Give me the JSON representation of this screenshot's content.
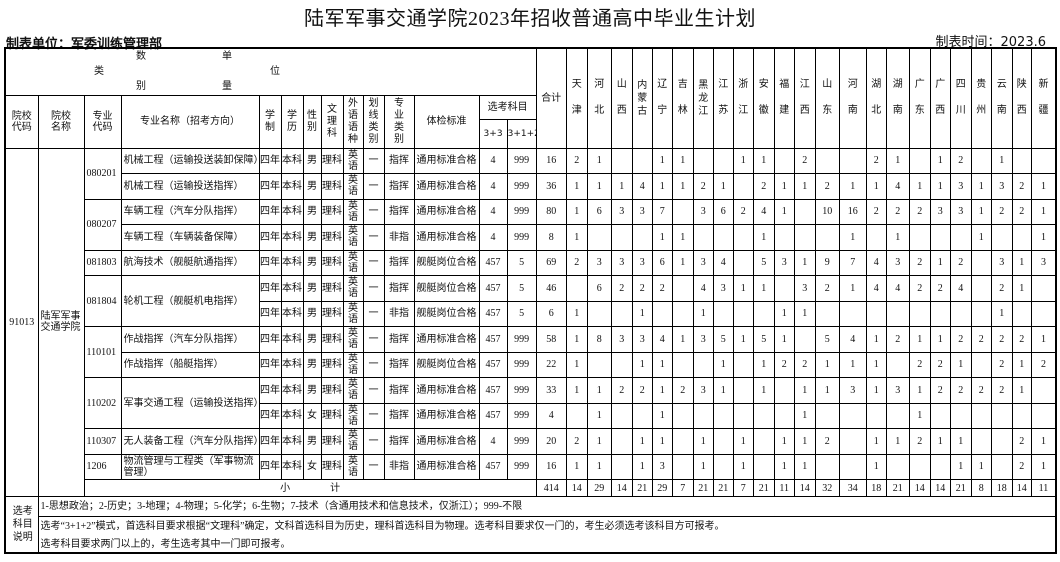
{
  "title": "陆军军事交通学院2023年招收普通高中毕业生计划",
  "unit_label": "制表单位：军委训练管理部",
  "time_label": "制表时间：2023.6",
  "header": {
    "category_chars": [
      "数",
      "单",
      "类",
      "位",
      "别",
      "量"
    ],
    "columns": [
      "院校代码",
      "院校名称",
      "专业代码",
      "专业名称（招考方向）",
      "学制",
      "学历",
      "性别",
      "文理科",
      "外语语种",
      "划线类别",
      "专业类别",
      "体检标准"
    ],
    "subject_group": "选考科目",
    "subject_cols": [
      "3+3",
      "3+1+2"
    ],
    "total": "合计",
    "provinces": [
      "天津",
      "河北",
      "山西",
      "内蒙古",
      "辽宁",
      "吉林",
      "黑龙江",
      "江苏",
      "浙江",
      "安徽",
      "福建",
      "江西",
      "山东",
      "河南",
      "湖北",
      "湖南",
      "广东",
      "广西",
      "四川",
      "贵州",
      "云南",
      "陕西",
      "新疆"
    ]
  },
  "school": {
    "code": "91013",
    "name": "陆军军事交通学院"
  },
  "majors": [
    {
      "code": "080201",
      "directions": [
        {
          "name": "机械工程（运输投送装卸保障）",
          "rows": [
            [
              "四年",
              "本科",
              "男",
              "理科",
              "英语",
              "一",
              "指挥",
              "通用标准合格",
              "4",
              "999",
              "16",
              [
                "2",
                "1",
                "",
                "",
                "1",
                "1",
                "",
                "",
                "1",
                "1",
                "",
                "2",
                "",
                "",
                "2",
                "1",
                "",
                "1",
                "2",
                "",
                "1",
                "",
                ""
              ]
            ]
          ]
        },
        {
          "name": "机械工程（运输投送指挥）",
          "rows": [
            [
              "四年",
              "本科",
              "男",
              "理科",
              "英语",
              "一",
              "指挥",
              "通用标准合格",
              "4",
              "999",
              "36",
              [
                "1",
                "1",
                "1",
                "4",
                "1",
                "1",
                "2",
                "1",
                "",
                "2",
                "1",
                "1",
                "2",
                "1",
                "1",
                "4",
                "1",
                "1",
                "3",
                "1",
                "3",
                "2",
                "1"
              ]
            ]
          ]
        }
      ]
    },
    {
      "code": "080207",
      "directions": [
        {
          "name": "车辆工程（汽车分队指挥）",
          "rows": [
            [
              "四年",
              "本科",
              "男",
              "理科",
              "英语",
              "一",
              "指挥",
              "通用标准合格",
              "4",
              "999",
              "80",
              [
                "1",
                "6",
                "3",
                "3",
                "7",
                "",
                "3",
                "6",
                "2",
                "4",
                "1",
                "",
                "10",
                "16",
                "2",
                "2",
                "2",
                "3",
                "3",
                "1",
                "2",
                "2",
                "1"
              ]
            ]
          ]
        },
        {
          "name": "车辆工程（车辆装备保障）",
          "rows": [
            [
              "四年",
              "本科",
              "男",
              "理科",
              "英语",
              "一",
              "非指",
              "通用标准合格",
              "4",
              "999",
              "8",
              [
                "1",
                "",
                "",
                "",
                "1",
                "1",
                "",
                "",
                "",
                "1",
                "",
                "",
                "",
                "1",
                "",
                "1",
                "",
                "",
                "",
                "1",
                "",
                "",
                "1"
              ]
            ]
          ]
        }
      ]
    },
    {
      "code": "081803",
      "directions": [
        {
          "name": "航海技术（舰艇航通指挥）",
          "rows": [
            [
              "四年",
              "本科",
              "男",
              "理科",
              "英语",
              "一",
              "指挥",
              "舰艇岗位合格",
              "457",
              "5",
              "69",
              [
                "2",
                "3",
                "3",
                "3",
                "6",
                "1",
                "3",
                "4",
                "",
                "5",
                "3",
                "1",
                "9",
                "7",
                "4",
                "3",
                "2",
                "1",
                "2",
                "",
                "3",
                "1",
                "3"
              ]
            ]
          ]
        }
      ]
    },
    {
      "code": "081804",
      "directions": [
        {
          "name": "轮机工程（舰艇机电指挥）",
          "rows": [
            [
              "四年",
              "本科",
              "男",
              "理科",
              "英语",
              "一",
              "指挥",
              "舰艇岗位合格",
              "457",
              "5",
              "46",
              [
                "",
                "6",
                "2",
                "2",
                "2",
                "",
                "4",
                "3",
                "1",
                "1",
                "",
                "3",
                "2",
                "1",
                "4",
                "4",
                "2",
                "2",
                "4",
                "",
                "2",
                "1",
                ""
              ]
            ],
            [
              "四年",
              "本科",
              "男",
              "理科",
              "英语",
              "一",
              "非指",
              "舰艇岗位合格",
              "457",
              "5",
              "6",
              [
                "1",
                "",
                "",
                "1",
                "",
                "",
                "1",
                "",
                "",
                "",
                "1",
                "1",
                "",
                "",
                "",
                "",
                "",
                "",
                "",
                "",
                "1",
                "",
                ""
              ]
            ]
          ]
        }
      ]
    },
    {
      "code": "110101",
      "directions": [
        {
          "name": "作战指挥（汽车分队指挥）",
          "rows": [
            [
              "四年",
              "本科",
              "男",
              "理科",
              "英语",
              "一",
              "指挥",
              "通用标准合格",
              "457",
              "999",
              "58",
              [
                "1",
                "8",
                "3",
                "3",
                "4",
                "1",
                "3",
                "5",
                "1",
                "5",
                "1",
                "",
                "5",
                "4",
                "1",
                "2",
                "1",
                "1",
                "2",
                "2",
                "2",
                "2",
                "1"
              ]
            ]
          ]
        },
        {
          "name": "作战指挥（船艇指挥）",
          "rows": [
            [
              "四年",
              "本科",
              "男",
              "理科",
              "英语",
              "一",
              "指挥",
              "舰艇岗位合格",
              "457",
              "999",
              "22",
              [
                "1",
                "",
                "",
                "1",
                "1",
                "",
                "",
                "1",
                "",
                "1",
                "2",
                "2",
                "1",
                "1",
                "1",
                "",
                "2",
                "2",
                "1",
                "",
                "2",
                "1",
                "2"
              ]
            ]
          ]
        }
      ]
    },
    {
      "code": "110202",
      "directions": [
        {
          "name": "军事交通工程（运输投送指挥）",
          "rows": [
            [
              "四年",
              "本科",
              "男",
              "理科",
              "英语",
              "一",
              "指挥",
              "通用标准合格",
              "457",
              "999",
              "33",
              [
                "1",
                "1",
                "2",
                "2",
                "1",
                "2",
                "3",
                "1",
                "",
                "1",
                "",
                "1",
                "1",
                "3",
                "1",
                "3",
                "1",
                "2",
                "2",
                "2",
                "2",
                "1",
                ""
              ]
            ],
            [
              "四年",
              "本科",
              "女",
              "理科",
              "英语",
              "一",
              "指挥",
              "通用标准合格",
              "457",
              "999",
              "4",
              [
                "",
                "1",
                "",
                "",
                "1",
                "",
                "",
                "",
                "",
                "",
                "",
                "1",
                "",
                "",
                "",
                "",
                "1",
                "",
                "",
                "",
                "",
                "",
                ""
              ]
            ]
          ]
        }
      ]
    },
    {
      "code": "110307",
      "directions": [
        {
          "name": "无人装备工程（汽车分队指挥）",
          "rows": [
            [
              "四年",
              "本科",
              "男",
              "理科",
              "英语",
              "一",
              "指挥",
              "通用标准合格",
              "4",
              "999",
              "20",
              [
                "2",
                "1",
                "",
                "1",
                "1",
                "",
                "1",
                "",
                "1",
                "",
                "1",
                "1",
                "2",
                "",
                "1",
                "1",
                "2",
                "1",
                "1",
                "",
                "",
                "2",
                "1"
              ]
            ]
          ]
        }
      ]
    },
    {
      "code": "1206",
      "directions": [
        {
          "name": "物流管理与工程类（军事物流管理）",
          "rows": [
            [
              "四年",
              "本科",
              "女",
              "理科",
              "英语",
              "一",
              "非指",
              "通用标准合格",
              "457",
              "999",
              "16",
              [
                "1",
                "1",
                "",
                "1",
                "3",
                "",
                "1",
                "",
                "1",
                "",
                "1",
                "1",
                "",
                "",
                "1",
                "",
                "",
                "",
                "1",
                "1",
                "",
                "2",
                "1"
              ]
            ]
          ]
        }
      ]
    }
  ],
  "subtotal": {
    "label": "小　　　　计",
    "total": "414",
    "provinces": [
      "14",
      "29",
      "14",
      "21",
      "29",
      "7",
      "21",
      "21",
      "7",
      "21",
      "11",
      "14",
      "32",
      "34",
      "18",
      "21",
      "14",
      "14",
      "21",
      "8",
      "18",
      "14",
      "11"
    ]
  },
  "notes": {
    "label": "选考科目说明",
    "line1": "1-思想政治；2-历史；3-地理；4-物理；5-化学；6-生物；7-技术（含通用技术和信息技术，仅浙江）；999-不限",
    "line2": "选考“3+1+2”模式，首选科目要求根据“文理科”确定，文科首选科目为历史，理科首选科目为物理。选考科目要求仅一门的，考生必须选考该科目方可报考。",
    "line3": "选考科目要求两门以上的，考生选考其中一门即可报考。"
  }
}
